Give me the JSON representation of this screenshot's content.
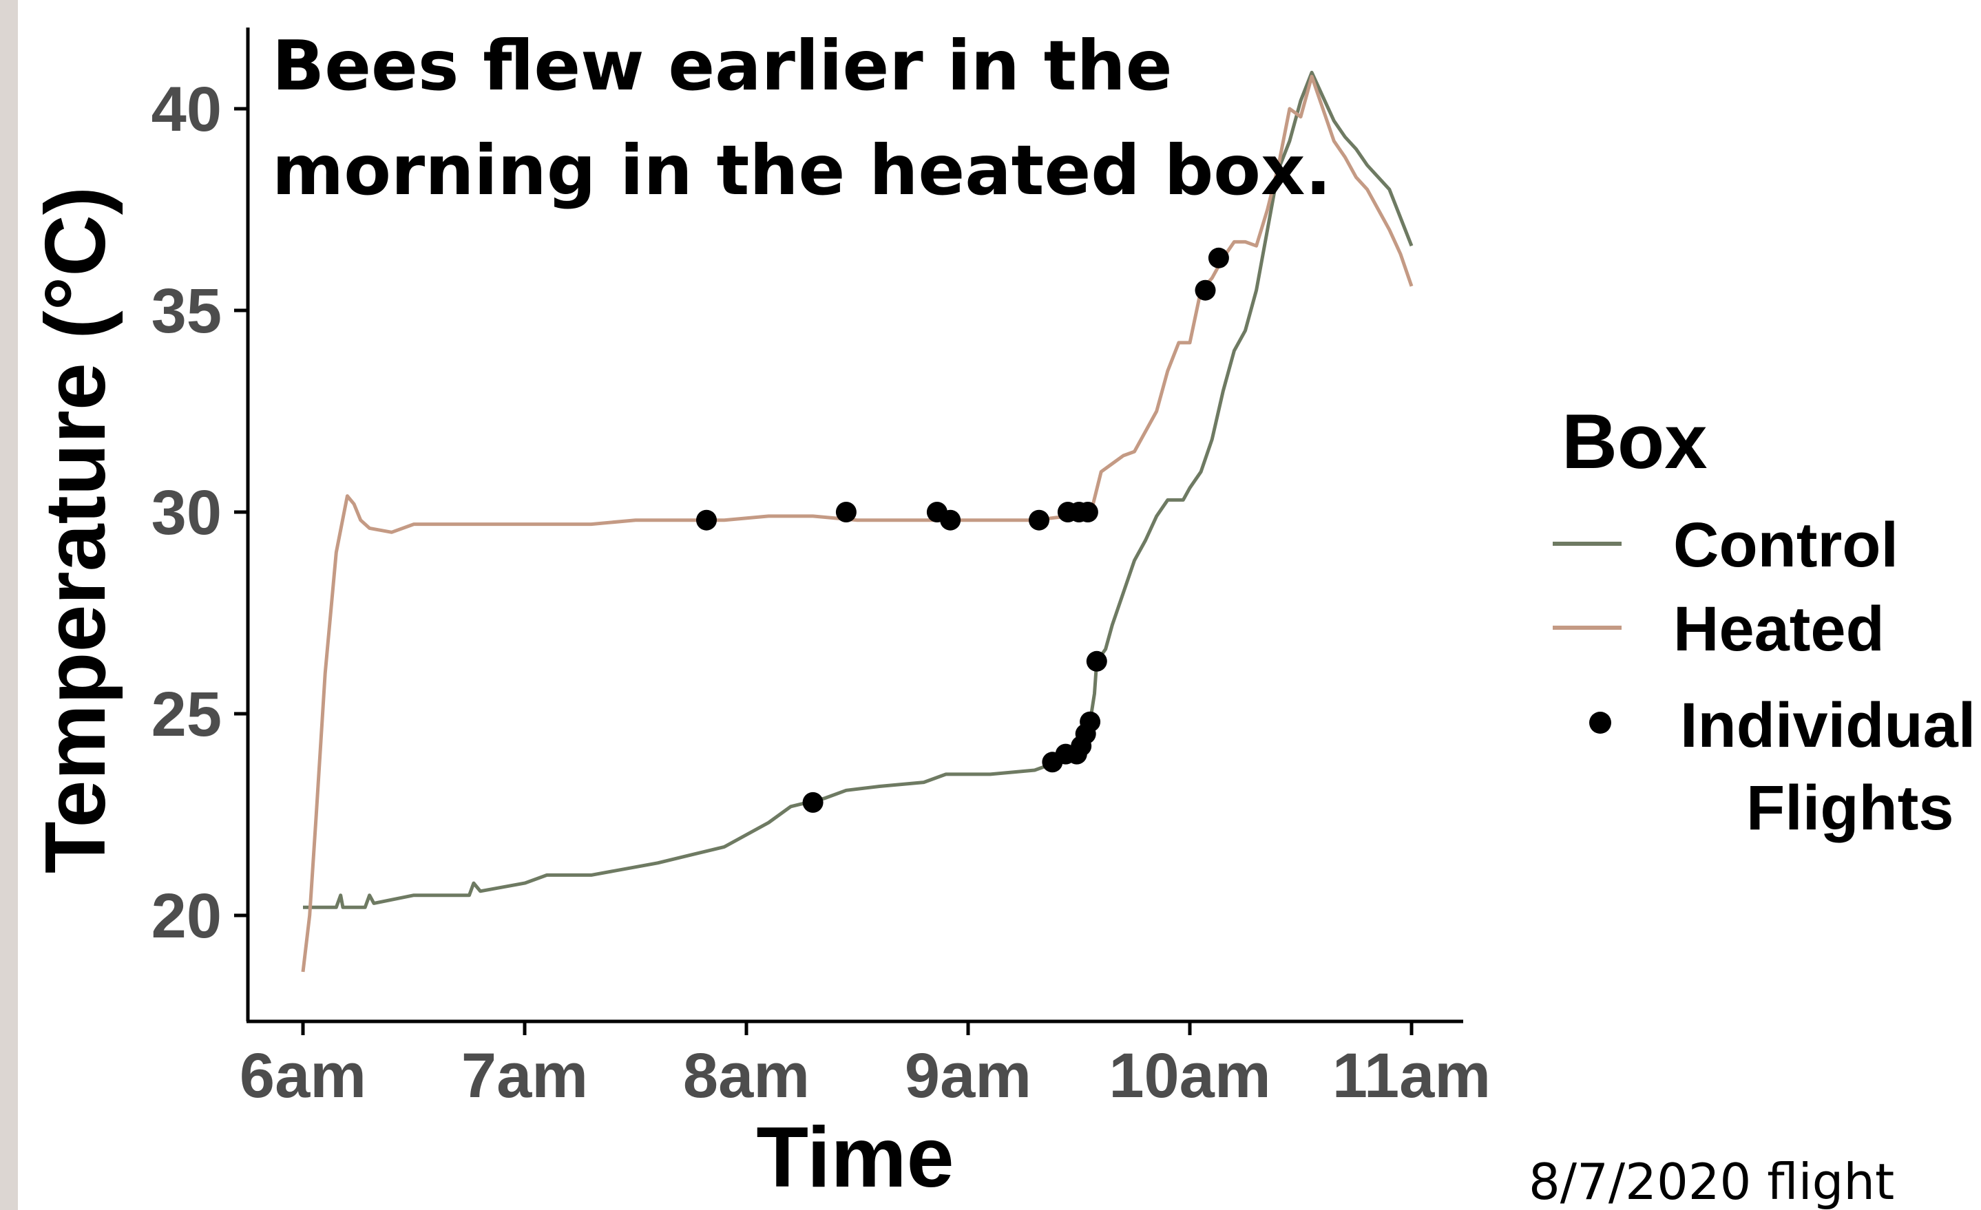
{
  "chart_data": {
    "type": "line",
    "annotation_lines": [
      "Bees flew earlier in the",
      "morning in the heated box."
    ],
    "xlabel": "Time",
    "ylabel": "Temperature (°C)",
    "x_ticks": [
      {
        "value": 6,
        "label": "6am"
      },
      {
        "value": 7,
        "label": "7am"
      },
      {
        "value": 8,
        "label": "8am"
      },
      {
        "value": 9,
        "label": "9am"
      },
      {
        "value": 10,
        "label": "10am"
      },
      {
        "value": 11,
        "label": "11am"
      }
    ],
    "y_ticks": [
      20,
      25,
      30,
      35,
      40
    ],
    "xlim": [
      5.75,
      11.23
    ],
    "ylim": [
      17.5,
      42
    ],
    "grid": false,
    "legend": {
      "title": "Box",
      "placement": "right",
      "entries": [
        {
          "name": "Control",
          "type": "line",
          "color": "#6e7a62"
        },
        {
          "name": "Heated",
          "type": "line",
          "color": "#c49a84"
        },
        {
          "name": "Individual Flights",
          "lines": [
            "Individual",
            "Flights"
          ],
          "type": "point",
          "color": "#000000"
        }
      ]
    },
    "series": [
      {
        "name": "Control",
        "color": "#6e7a62",
        "points": [
          [
            6.0,
            20.2
          ],
          [
            6.15,
            20.2
          ],
          [
            6.17,
            20.5
          ],
          [
            6.18,
            20.2
          ],
          [
            6.28,
            20.2
          ],
          [
            6.3,
            20.5
          ],
          [
            6.32,
            20.3
          ],
          [
            6.5,
            20.5
          ],
          [
            6.75,
            20.5
          ],
          [
            6.77,
            20.8
          ],
          [
            6.8,
            20.6
          ],
          [
            7.0,
            20.8
          ],
          [
            7.1,
            21.0
          ],
          [
            7.3,
            21.0
          ],
          [
            7.5,
            21.2
          ],
          [
            7.6,
            21.3
          ],
          [
            7.75,
            21.5
          ],
          [
            7.9,
            21.7
          ],
          [
            8.0,
            22.0
          ],
          [
            8.1,
            22.3
          ],
          [
            8.2,
            22.7
          ],
          [
            8.35,
            22.9
          ],
          [
            8.45,
            23.1
          ],
          [
            8.6,
            23.2
          ],
          [
            8.8,
            23.3
          ],
          [
            8.9,
            23.5
          ],
          [
            9.1,
            23.5
          ],
          [
            9.3,
            23.6
          ],
          [
            9.4,
            23.8
          ],
          [
            9.48,
            24.0
          ],
          [
            9.52,
            24.3
          ],
          [
            9.55,
            24.8
          ],
          [
            9.57,
            25.5
          ],
          [
            9.58,
            26.3
          ],
          [
            9.62,
            26.6
          ],
          [
            9.65,
            27.2
          ],
          [
            9.7,
            28.0
          ],
          [
            9.75,
            28.8
          ],
          [
            9.8,
            29.3
          ],
          [
            9.85,
            29.9
          ],
          [
            9.9,
            30.3
          ],
          [
            9.97,
            30.3
          ],
          [
            10.0,
            30.6
          ],
          [
            10.05,
            31.0
          ],
          [
            10.1,
            31.8
          ],
          [
            10.15,
            33.0
          ],
          [
            10.2,
            34.0
          ],
          [
            10.25,
            34.5
          ],
          [
            10.3,
            35.5
          ],
          [
            10.35,
            37.0
          ],
          [
            10.4,
            38.5
          ],
          [
            10.45,
            39.2
          ],
          [
            10.5,
            40.2
          ],
          [
            10.55,
            40.9
          ],
          [
            10.6,
            40.3
          ],
          [
            10.65,
            39.7
          ],
          [
            10.7,
            39.3
          ],
          [
            10.75,
            39.0
          ],
          [
            10.8,
            38.6
          ],
          [
            10.85,
            38.3
          ],
          [
            10.9,
            38.0
          ],
          [
            10.95,
            37.3
          ],
          [
            11.0,
            36.6
          ]
        ]
      },
      {
        "name": "Heated",
        "color": "#c49a84",
        "points": [
          [
            6.0,
            18.6
          ],
          [
            6.03,
            20.0
          ],
          [
            6.06,
            22.5
          ],
          [
            6.1,
            26.0
          ],
          [
            6.15,
            29.0
          ],
          [
            6.2,
            30.4
          ],
          [
            6.23,
            30.2
          ],
          [
            6.26,
            29.8
          ],
          [
            6.3,
            29.6
          ],
          [
            6.4,
            29.5
          ],
          [
            6.5,
            29.7
          ],
          [
            6.7,
            29.7
          ],
          [
            6.9,
            29.7
          ],
          [
            7.1,
            29.7
          ],
          [
            7.3,
            29.7
          ],
          [
            7.5,
            29.8
          ],
          [
            7.7,
            29.8
          ],
          [
            7.9,
            29.8
          ],
          [
            8.1,
            29.9
          ],
          [
            8.3,
            29.9
          ],
          [
            8.5,
            29.8
          ],
          [
            8.7,
            29.8
          ],
          [
            8.9,
            29.8
          ],
          [
            9.1,
            29.8
          ],
          [
            9.3,
            29.8
          ],
          [
            9.45,
            29.9
          ],
          [
            9.55,
            29.9
          ],
          [
            9.6,
            31.0
          ],
          [
            9.65,
            31.2
          ],
          [
            9.7,
            31.4
          ],
          [
            9.75,
            31.5
          ],
          [
            9.8,
            32.0
          ],
          [
            9.85,
            32.5
          ],
          [
            9.9,
            33.5
          ],
          [
            9.95,
            34.2
          ],
          [
            10.0,
            34.2
          ],
          [
            10.05,
            35.5
          ],
          [
            10.1,
            35.8
          ],
          [
            10.15,
            36.3
          ],
          [
            10.2,
            36.7
          ],
          [
            10.25,
            36.7
          ],
          [
            10.3,
            36.6
          ],
          [
            10.35,
            37.5
          ],
          [
            10.4,
            38.6
          ],
          [
            10.45,
            40.0
          ],
          [
            10.5,
            39.8
          ],
          [
            10.55,
            40.8
          ],
          [
            10.6,
            40.0
          ],
          [
            10.65,
            39.2
          ],
          [
            10.7,
            38.8
          ],
          [
            10.75,
            38.3
          ],
          [
            10.8,
            38.0
          ],
          [
            10.85,
            37.5
          ],
          [
            10.9,
            37.0
          ],
          [
            10.95,
            36.4
          ],
          [
            11.0,
            35.6
          ]
        ]
      }
    ],
    "flights": [
      [
        7.82,
        29.8
      ],
      [
        8.45,
        30.0
      ],
      [
        8.86,
        30.0
      ],
      [
        8.92,
        29.8
      ],
      [
        9.32,
        29.8
      ],
      [
        9.45,
        30.0
      ],
      [
        9.5,
        30.0
      ],
      [
        9.54,
        30.0
      ],
      [
        8.3,
        22.8
      ],
      [
        9.38,
        23.8
      ],
      [
        9.44,
        24.0
      ],
      [
        9.49,
        24.0
      ],
      [
        9.51,
        24.2
      ],
      [
        9.53,
        24.5
      ],
      [
        9.55,
        24.8
      ],
      [
        9.58,
        26.3
      ],
      [
        10.07,
        35.5
      ],
      [
        10.13,
        36.3
      ]
    ]
  },
  "footer_text": "8/7/2020 flight"
}
